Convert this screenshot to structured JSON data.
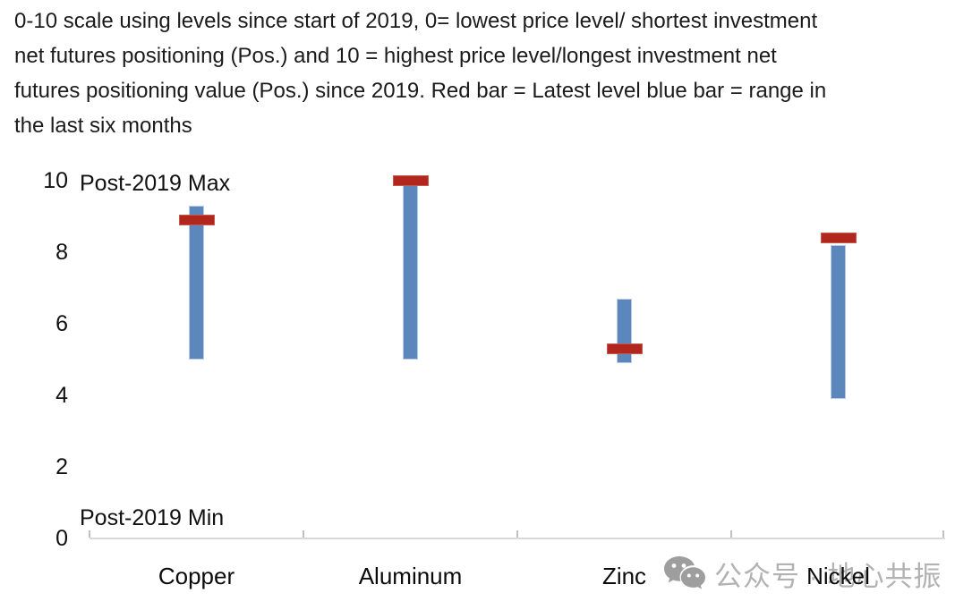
{
  "title": {
    "line1": "0-10 scale using levels since start of 2019, 0= lowest price level/ shortest investment",
    "line2": "net futures positioning (Pos.) and 10 = highest price level/longest investment net",
    "line3": "futures positioning value (Pos.) since 2019. Red bar = Latest level blue bar = range in",
    "line4": "the last six months"
  },
  "chart_data": {
    "type": "bar",
    "subtype": "floating-range-bars-with-latest-level-marker",
    "categories": [
      "Copper",
      "Aluminum",
      "Zinc",
      "Nickel"
    ],
    "series": [
      {
        "name": "Range in the last six months (blue bar)",
        "kind": "floating-bar",
        "low": [
          5.0,
          5.0,
          4.9,
          3.9
        ],
        "high": [
          9.3,
          9.9,
          6.7,
          8.2
        ],
        "color": "#5b87bc"
      },
      {
        "name": "Latest level (red bar)",
        "kind": "marker",
        "values": [
          8.9,
          10.0,
          5.3,
          8.4
        ],
        "color": "#b1271d"
      }
    ],
    "xlabel": "",
    "ylabel": "",
    "ylim": [
      0,
      10
    ],
    "yticks": [
      "0",
      "2",
      "4",
      "6",
      "8",
      "10"
    ],
    "grid": false,
    "legend_position": "none",
    "annotations": {
      "max": "Post-2019 Max",
      "min": "Post-2019 Min"
    },
    "axis_colors": {
      "baseline": "#d9d9d9",
      "tick": "#bfbfbf"
    }
  },
  "watermark": {
    "icon": "wechat-icon",
    "text": "公众号 · 地心共振"
  }
}
